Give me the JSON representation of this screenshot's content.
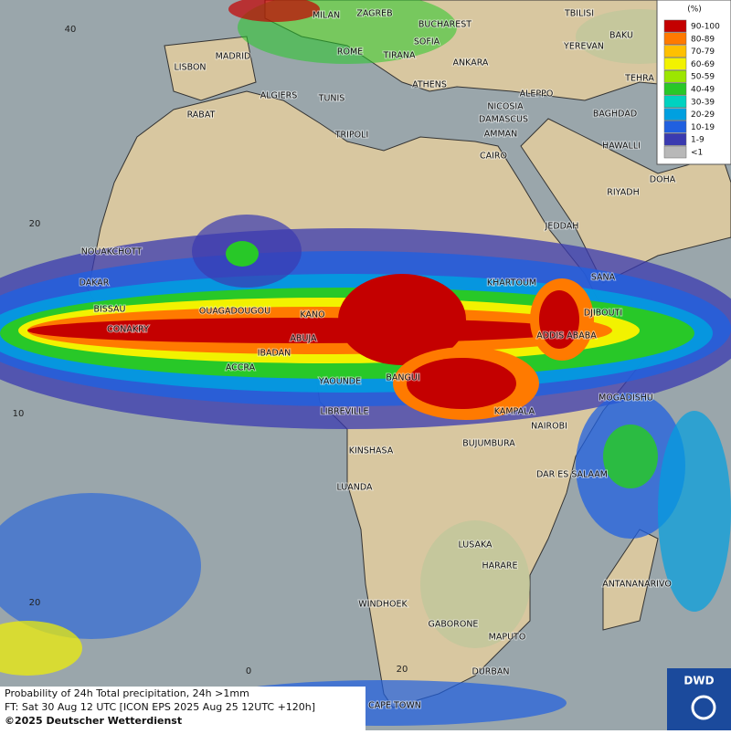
{
  "map": {
    "legend": {
      "unit": "(%)",
      "items": [
        {
          "label": "90-100",
          "color": "#c40000"
        },
        {
          "label": "80-89",
          "color": "#ff7a00"
        },
        {
          "label": "70-79",
          "color": "#ffc000"
        },
        {
          "label": "60-69",
          "color": "#f2f200"
        },
        {
          "label": "50-59",
          "color": "#9ce600"
        },
        {
          "label": "40-49",
          "color": "#28c828"
        },
        {
          "label": "30-39",
          "color": "#00d2c0"
        },
        {
          "label": "20-29",
          "color": "#00a0e0"
        },
        {
          "label": "10-19",
          "color": "#2060e0"
        },
        {
          "label": "1-9",
          "color": "#3a3ab0"
        },
        {
          "label": "<1",
          "color": "#b8b8b8"
        }
      ]
    },
    "grid_labels": [
      "40",
      "20",
      "10",
      "20",
      "0",
      "20"
    ],
    "cities": [
      "MILAN",
      "ZAGREB",
      "BUCHAREST",
      "TBILISI",
      "BAKU",
      "SOFIA",
      "YEREVAN",
      "MADRID",
      "ROME",
      "TIRANA",
      "ANKARA",
      "LISBON",
      "TEHRA",
      "ATHENS",
      "ALGIERS",
      "TUNIS",
      "ALEPPO",
      "RABAT",
      "NICOSIA",
      "BAGHDAD",
      "DAMASCUS",
      "TRIPOLI",
      "AMMAN",
      "HAWALLI",
      "CAIRO",
      "DOHA",
      "RIYADH",
      "JEDDAH",
      "NOUAKCHOTT",
      "SANA",
      "KHARTOUM",
      "DAKAR",
      "DJIBOUTI",
      "BISSAU",
      "OUAGADOUGOU",
      "KANO",
      "CONAKRY",
      "ABUJA",
      "ADDIS ABABA",
      "IBADAN",
      "ACCRA",
      "YAOUNDE",
      "BANGUI",
      "MOGADISHU",
      "LIBREVILLE",
      "KAMPALA",
      "NAIROBI",
      "BUJUMBURA",
      "KINSHASA",
      "DAR ES SALAAM",
      "LUANDA",
      "LUSAKA",
      "HARARE",
      "ANTANANARIVO",
      "WINDHOEK",
      "GABORONE",
      "MAPUTO",
      "DURBAN",
      "CAPE TOWN"
    ],
    "caption": [
      "Probability of 24h Total precipitation, 24h >1mm",
      "FT: Sat 30 Aug 12 UTC [ICON EPS 2025 Aug 25 12UTC +120h]",
      "©2025 Deutscher Wetterdienst"
    ],
    "logo": "DWD"
  }
}
